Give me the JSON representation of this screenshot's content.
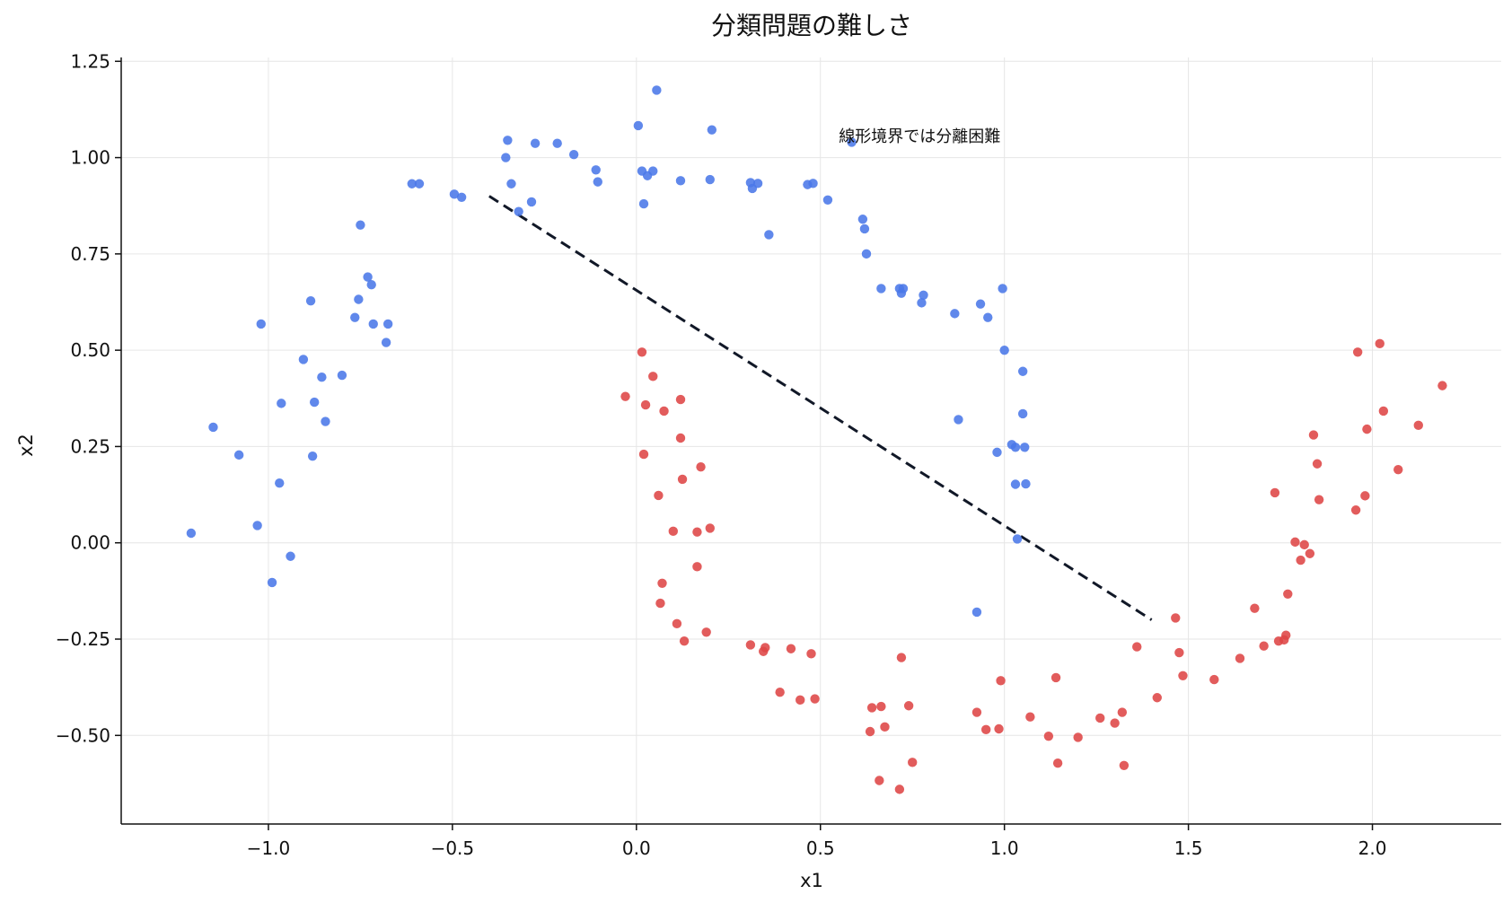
{
  "chart_data": {
    "type": "scatter",
    "title": "分類問題の難しさ",
    "xlabel": "x1",
    "ylabel": "x2",
    "xlim": [
      -1.4,
      2.35
    ],
    "ylim": [
      -0.73,
      1.26
    ],
    "xticks": [
      -1.0,
      -0.5,
      0.0,
      0.5,
      1.0,
      1.5,
      2.0
    ],
    "xtick_labels": [
      "−1.0",
      "−0.5",
      "0.0",
      "0.5",
      "1.0",
      "1.5",
      "2.0"
    ],
    "yticks": [
      -0.5,
      -0.25,
      0.0,
      0.25,
      0.5,
      0.75,
      1.0,
      1.25
    ],
    "ytick_labels": [
      "−0.50",
      "−0.25",
      "0.00",
      "0.25",
      "0.50",
      "0.75",
      "1.00",
      "1.25"
    ],
    "grid": true,
    "annotation": {
      "text": "線形境界では分離困難",
      "x": 0.55,
      "y": 1.055
    },
    "boundary_line": {
      "x": [
        -0.4,
        1.4
      ],
      "y": [
        0.9,
        -0.2
      ],
      "color": "#111827",
      "style": "dashed"
    },
    "series": [
      {
        "color": "#4a78e8",
        "points": [
          [
            -1.21,
            0.025
          ],
          [
            -1.15,
            0.3
          ],
          [
            -1.08,
            0.228
          ],
          [
            -1.03,
            0.045
          ],
          [
            -1.02,
            0.568
          ],
          [
            -0.99,
            -0.103
          ],
          [
            -0.97,
            0.155
          ],
          [
            -0.965,
            0.362
          ],
          [
            -0.94,
            -0.035
          ],
          [
            -0.905,
            0.476
          ],
          [
            -0.885,
            0.628
          ],
          [
            -0.88,
            0.225
          ],
          [
            -0.875,
            0.365
          ],
          [
            -0.855,
            0.43
          ],
          [
            -0.845,
            0.315
          ],
          [
            -0.8,
            0.435
          ],
          [
            -0.765,
            0.585
          ],
          [
            -0.755,
            0.632
          ],
          [
            -0.75,
            0.825
          ],
          [
            -0.73,
            0.69
          ],
          [
            -0.72,
            0.67
          ],
          [
            -0.715,
            0.568
          ],
          [
            -0.68,
            0.52
          ],
          [
            -0.675,
            0.568
          ],
          [
            -0.61,
            0.932
          ],
          [
            -0.59,
            0.932
          ],
          [
            -0.495,
            0.905
          ],
          [
            -0.475,
            0.897
          ],
          [
            -0.355,
            1.0
          ],
          [
            -0.35,
            1.045
          ],
          [
            -0.34,
            0.932
          ],
          [
            -0.32,
            0.86
          ],
          [
            -0.285,
            0.885
          ],
          [
            -0.275,
            1.037
          ],
          [
            -0.215,
            1.037
          ],
          [
            -0.17,
            1.008
          ],
          [
            -0.11,
            0.968
          ],
          [
            -0.105,
            0.937
          ],
          [
            0.005,
            1.083
          ],
          [
            0.015,
            0.965
          ],
          [
            0.02,
            0.88
          ],
          [
            0.03,
            0.953
          ],
          [
            0.045,
            0.965
          ],
          [
            0.055,
            1.175
          ],
          [
            0.12,
            0.94
          ],
          [
            0.2,
            0.943
          ],
          [
            0.205,
            1.072
          ],
          [
            0.31,
            0.935
          ],
          [
            0.315,
            0.92
          ],
          [
            0.33,
            0.933
          ],
          [
            0.36,
            0.8
          ],
          [
            0.465,
            0.93
          ],
          [
            0.48,
            0.933
          ],
          [
            0.52,
            0.89
          ],
          [
            0.585,
            1.04
          ],
          [
            0.615,
            0.84
          ],
          [
            0.62,
            0.815
          ],
          [
            0.625,
            0.75
          ],
          [
            0.665,
            0.66
          ],
          [
            0.715,
            0.66
          ],
          [
            0.72,
            0.648
          ],
          [
            0.725,
            0.66
          ],
          [
            0.775,
            0.623
          ],
          [
            0.78,
            0.643
          ],
          [
            0.865,
            0.595
          ],
          [
            0.875,
            0.32
          ],
          [
            0.925,
            -0.18
          ],
          [
            0.935,
            0.62
          ],
          [
            0.955,
            0.585
          ],
          [
            0.98,
            0.235
          ],
          [
            0.995,
            0.66
          ],
          [
            1.0,
            0.5
          ],
          [
            1.02,
            0.255
          ],
          [
            1.03,
            0.248
          ],
          [
            1.03,
            0.152
          ],
          [
            1.035,
            0.01
          ],
          [
            1.05,
            0.445
          ],
          [
            1.05,
            0.335
          ],
          [
            1.055,
            0.248
          ],
          [
            1.058,
            0.153
          ]
        ]
      },
      {
        "color": "#de4545",
        "points": [
          [
            -0.03,
            0.38
          ],
          [
            0.015,
            0.495
          ],
          [
            0.02,
            0.23
          ],
          [
            0.025,
            0.358
          ],
          [
            0.045,
            0.432
          ],
          [
            0.06,
            0.123
          ],
          [
            0.065,
            -0.157
          ],
          [
            0.07,
            -0.105
          ],
          [
            0.075,
            0.342
          ],
          [
            0.1,
            0.03
          ],
          [
            0.11,
            -0.21
          ],
          [
            0.12,
            0.372
          ],
          [
            0.12,
            0.272
          ],
          [
            0.125,
            0.165
          ],
          [
            0.13,
            -0.255
          ],
          [
            0.165,
            -0.062
          ],
          [
            0.165,
            0.028
          ],
          [
            0.175,
            0.197
          ],
          [
            0.19,
            -0.232
          ],
          [
            0.2,
            0.038
          ],
          [
            0.31,
            -0.265
          ],
          [
            0.345,
            -0.282
          ],
          [
            0.35,
            -0.272
          ],
          [
            0.39,
            -0.388
          ],
          [
            0.42,
            -0.275
          ],
          [
            0.445,
            -0.408
          ],
          [
            0.475,
            -0.288
          ],
          [
            0.485,
            -0.405
          ],
          [
            0.635,
            -0.49
          ],
          [
            0.64,
            -0.428
          ],
          [
            0.66,
            -0.617
          ],
          [
            0.665,
            -0.425
          ],
          [
            0.675,
            -0.478
          ],
          [
            0.715,
            -0.64
          ],
          [
            0.72,
            -0.298
          ],
          [
            0.74,
            -0.423
          ],
          [
            0.75,
            -0.57
          ],
          [
            0.925,
            -0.44
          ],
          [
            0.95,
            -0.485
          ],
          [
            0.985,
            -0.483
          ],
          [
            0.99,
            -0.358
          ],
          [
            1.07,
            -0.452
          ],
          [
            1.12,
            -0.502
          ],
          [
            1.14,
            -0.35
          ],
          [
            1.145,
            -0.572
          ],
          [
            1.2,
            -0.505
          ],
          [
            1.26,
            -0.455
          ],
          [
            1.3,
            -0.468
          ],
          [
            1.32,
            -0.44
          ],
          [
            1.325,
            -0.578
          ],
          [
            1.36,
            -0.27
          ],
          [
            1.415,
            -0.402
          ],
          [
            1.465,
            -0.195
          ],
          [
            1.475,
            -0.285
          ],
          [
            1.485,
            -0.345
          ],
          [
            1.57,
            -0.355
          ],
          [
            1.64,
            -0.3
          ],
          [
            1.68,
            -0.17
          ],
          [
            1.705,
            -0.268
          ],
          [
            1.735,
            0.13
          ],
          [
            1.745,
            -0.255
          ],
          [
            1.76,
            -0.252
          ],
          [
            1.765,
            -0.24
          ],
          [
            1.77,
            -0.133
          ],
          [
            1.79,
            0.002
          ],
          [
            1.805,
            -0.045
          ],
          [
            1.815,
            -0.005
          ],
          [
            1.83,
            -0.028
          ],
          [
            1.84,
            0.28
          ],
          [
            1.85,
            0.205
          ],
          [
            1.855,
            0.112
          ],
          [
            1.955,
            0.085
          ],
          [
            1.96,
            0.495
          ],
          [
            1.98,
            0.122
          ],
          [
            1.985,
            0.295
          ],
          [
            2.02,
            0.517
          ],
          [
            2.03,
            0.342
          ],
          [
            2.07,
            0.19
          ],
          [
            2.125,
            0.305
          ],
          [
            2.19,
            0.408
          ]
        ]
      }
    ]
  }
}
